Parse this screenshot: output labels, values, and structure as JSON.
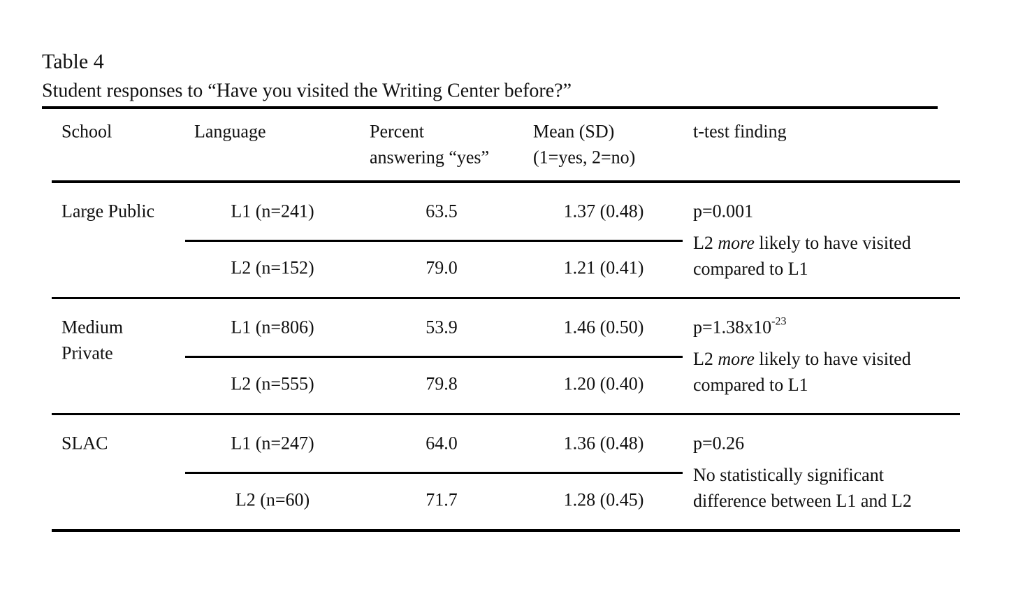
{
  "table_label": "Table 4",
  "caption": "Student responses to “Have you visited the Writing Center before?”",
  "table": {
    "header": [
      [
        "School"
      ],
      [
        "Language"
      ],
      [
        "Percent",
        "answering “yes”"
      ],
      [
        "Mean (SD)",
        "(1=yes, 2=no)"
      ],
      [
        "t-test finding"
      ]
    ],
    "groups": [
      {
        "school": [
          "Large Public"
        ],
        "rows": [
          [
            "L1 (n=241)",
            "63.5",
            "1.37 (0.48)"
          ],
          [
            "L2 (n=152)",
            "79.0",
            "1.21 (0.41)"
          ]
        ],
        "finding": {
          "p": "p=0.001",
          "note": {
            "before": "L2",
            "emphasis": "more",
            "after": "likely to have visited compared to L1"
          }
        }
      },
      {
        "school": [
          "Medium",
          "Private"
        ],
        "rows": [
          [
            "L1 (n=806)",
            "53.9",
            "1.46 (0.50)"
          ],
          [
            "L2 (n=555)",
            "79.8",
            "1.20 (0.40)"
          ]
        ],
        "finding": {
          "p": {
            "base": "p=1.38x10",
            "sup": "-23"
          },
          "note": {
            "before": "L2",
            "emphasis": "more",
            "after": "likely to have visited compared to L1"
          }
        }
      },
      {
        "school": [
          "SLAC"
        ],
        "rows": [
          [
            "L1 (n=247)",
            "64.0",
            "1.36 (0.48)"
          ],
          [
            "L2 (n=60)",
            "71.7",
            "1.28 (0.45)"
          ]
        ],
        "finding": {
          "p": "p=0.26",
          "note": "No statistically significant difference between L1 and L2"
        }
      }
    ]
  }
}
